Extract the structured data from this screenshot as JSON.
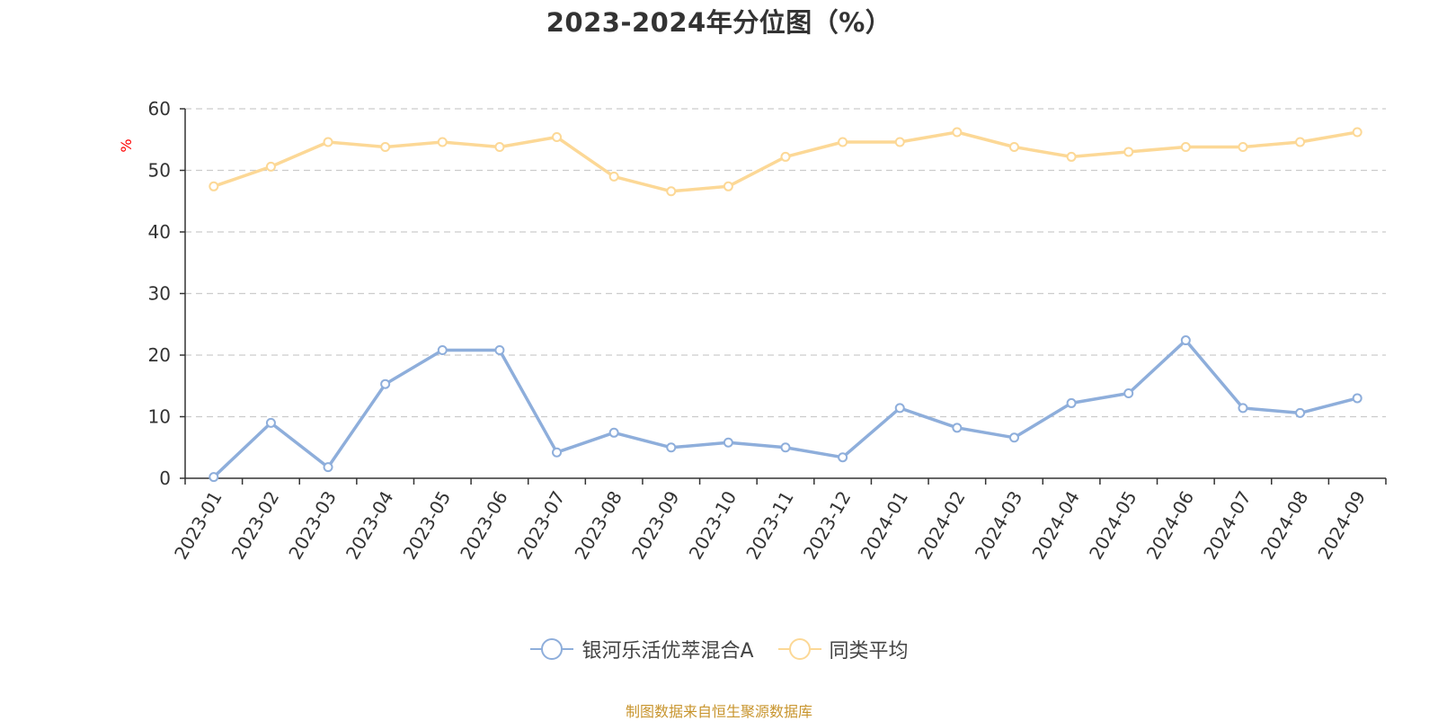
{
  "chart_data": {
    "type": "line",
    "title": "2023-2024年分位图（%）",
    "ylabel": "%",
    "xlabel": "",
    "ylim": [
      0,
      60
    ],
    "yticks": [
      0,
      10,
      20,
      30,
      40,
      50,
      60
    ],
    "grid": true,
    "legend_position": "bottom",
    "categories": [
      "2023-01",
      "2023-02",
      "2023-03",
      "2023-04",
      "2023-05",
      "2023-06",
      "2023-07",
      "2023-08",
      "2023-09",
      "2023-10",
      "2023-11",
      "2023-12",
      "2024-01",
      "2024-02",
      "2024-03",
      "2024-04",
      "2024-05",
      "2024-06",
      "2024-07",
      "2024-08",
      "2024-09"
    ],
    "series": [
      {
        "name": "银河乐活优萃混合A",
        "color": "#8eaedb",
        "values": [
          0.2,
          9.0,
          1.8,
          15.3,
          20.8,
          20.8,
          4.2,
          7.4,
          5.0,
          5.8,
          5.0,
          3.4,
          11.4,
          8.2,
          6.6,
          12.2,
          13.8,
          22.4,
          11.4,
          10.6,
          13.0
        ]
      },
      {
        "name": "同类平均",
        "color": "#fcd896",
        "values": [
          47.4,
          50.6,
          54.6,
          53.8,
          54.6,
          53.8,
          55.4,
          49.0,
          46.6,
          47.4,
          52.2,
          54.6,
          54.6,
          56.2,
          53.8,
          52.2,
          53.0,
          53.8,
          53.8,
          54.6,
          56.2
        ]
      }
    ]
  },
  "source_note": "制图数据来自恒生聚源数据库"
}
